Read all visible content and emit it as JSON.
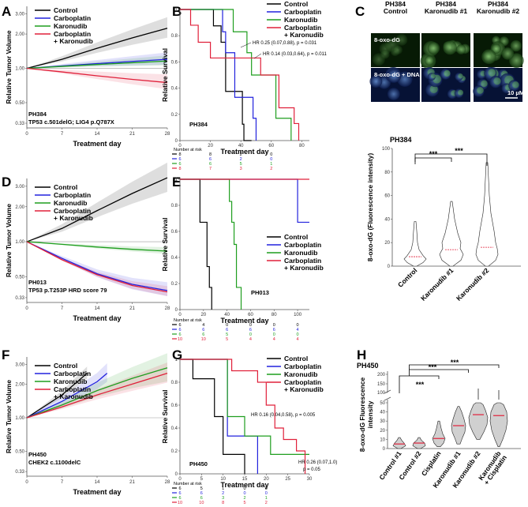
{
  "panel_labels": [
    "A",
    "B",
    "C",
    "D",
    "E",
    "F",
    "G",
    "H"
  ],
  "colors": {
    "control": "#000000",
    "carboplatin": "#2222dd",
    "karonudib": "#1f9e1f",
    "combo": "#e0203a",
    "median": "#ff0000"
  },
  "chart_data": [
    {
      "id": "A",
      "type": "line",
      "xlabel": "Treatment day",
      "ylabel": "Relative Tumor Volume",
      "xticks": [
        0,
        7,
        14,
        21,
        28
      ],
      "yticks": [
        "0.33",
        "0.50",
        "1.00",
        "2.00",
        "3.00"
      ],
      "legend": [
        "Control",
        "Carboplatin",
        "Karonudib",
        "Carboplatin\n+ Karonudib"
      ],
      "series": [
        {
          "name": "Control",
          "color": "#000000",
          "x": [
            0,
            7,
            14,
            21,
            28
          ],
          "y": [
            1,
            1.2,
            1.5,
            1.85,
            2.25
          ]
        },
        {
          "name": "Carboplatin",
          "color": "#2222dd",
          "x": [
            0,
            7,
            14,
            21,
            28
          ],
          "y": [
            1,
            1.05,
            1.1,
            1.15,
            1.2
          ]
        },
        {
          "name": "Karonudib",
          "color": "#1f9e1f",
          "x": [
            0,
            7,
            14,
            21,
            28
          ],
          "y": [
            1,
            1.04,
            1.08,
            1.12,
            1.16
          ]
        },
        {
          "name": "Carboplatin + Karonudib",
          "color": "#e0203a",
          "x": [
            0,
            7,
            14,
            21,
            28
          ],
          "y": [
            1,
            0.93,
            0.86,
            0.8,
            0.75
          ]
        }
      ],
      "annotation": [
        "PH384",
        "TP53 c.501delG; LIG4 p.Q787X"
      ]
    },
    {
      "id": "B",
      "type": "line",
      "subtype": "survival",
      "xlabel": "Treatment day",
      "ylabel": "Relative Survival",
      "xticks": [
        0,
        20,
        40,
        60,
        80
      ],
      "yticks": [
        "0",
        "0.2",
        "0.4",
        "0.6",
        "0.8",
        "1"
      ],
      "legend": [
        "Control",
        "Carboplatin",
        "Karonudib",
        "Carboplatin\n+ Karonudib"
      ],
      "model": "PH384",
      "hr": [
        "HR 0.25 (0.07,0.88), p = 0.031",
        "HR 0.14 (0.03,0.64), p = 0.011"
      ],
      "risk_title": "Number at risk",
      "risk": [
        [
          "8",
          "8",
          "2",
          "0"
        ],
        [
          "6",
          "6",
          "2",
          "0"
        ],
        [
          "6",
          "6",
          "5",
          "1"
        ],
        [
          "8",
          "7",
          "3",
          "2"
        ]
      ],
      "series": [
        {
          "name": "Control",
          "color": "#000000",
          "x": [
            0,
            20,
            22,
            27,
            30,
            38,
            41,
            42,
            47
          ],
          "y": [
            1,
            1,
            0.875,
            0.75,
            0.375,
            0.375,
            0.125,
            0,
            0
          ]
        },
        {
          "name": "Carboplatin",
          "color": "#2222dd",
          "x": [
            0,
            25,
            28,
            30,
            36,
            45,
            48,
            50
          ],
          "y": [
            1,
            1,
            0.83,
            0.67,
            0.33,
            0.33,
            0.17,
            0
          ]
        },
        {
          "name": "Karonudib",
          "color": "#1f9e1f",
          "x": [
            0,
            33,
            35,
            37,
            44,
            47,
            62,
            63,
            72,
            73
          ],
          "y": [
            1,
            1,
            0.83,
            0.83,
            0.67,
            0.5,
            0.5,
            0.17,
            0.17,
            0
          ]
        },
        {
          "name": "Carboplatin + Karonudib",
          "color": "#e0203a",
          "x": [
            0,
            7,
            10,
            12,
            18,
            20,
            50,
            53,
            65,
            72,
            75,
            78
          ],
          "y": [
            1,
            0.88,
            0.88,
            0.75,
            0.75,
            0.63,
            0.63,
            0.5,
            0.25,
            0.25,
            0.13,
            0
          ]
        }
      ]
    },
    {
      "id": "C",
      "type": "heatmap",
      "subtype": "microscopy",
      "columns": [
        "PH384\nControl",
        "PH384\nKaronudib #1",
        "PH384\nKaronudib #2"
      ],
      "rows": [
        "8-oxo-dG",
        "8-oxo-dG + DNA"
      ],
      "scale_bar": "10 µM"
    },
    {
      "id": "C2",
      "type": "violin",
      "title": "PH384",
      "ylabel": "8-oxo-dG (Fluorescence intensity)",
      "categories": [
        "Control",
        "Karonudib #1",
        "Karonudib #2"
      ],
      "yticks": [
        "0",
        "20",
        "40",
        "60",
        "80",
        "100"
      ],
      "ylim": [
        0,
        100
      ],
      "medians": [
        8,
        14,
        16
      ],
      "sig": [
        "***",
        "***"
      ]
    },
    {
      "id": "D",
      "type": "line",
      "xlabel": "Treatment day",
      "ylabel": "Relative Tumor Volume",
      "xticks": [
        0,
        7,
        14,
        21,
        28
      ],
      "yticks": [
        "0.33",
        "0.50",
        "1.00",
        "2.00",
        "3.00"
      ],
      "legend": [
        "Control",
        "Carboplatin",
        "Karonudib",
        "Carboplatin\n+ Karonudib"
      ],
      "annotation": [
        "PH013",
        "TP53 p.T253P  HRD score 79"
      ],
      "series": [
        {
          "name": "Control",
          "color": "#000000",
          "x": [
            0,
            7,
            14,
            21,
            28
          ],
          "y": [
            1,
            1.3,
            1.85,
            2.6,
            3.55
          ]
        },
        {
          "name": "Carboplatin",
          "color": "#2222dd",
          "x": [
            0,
            7,
            14,
            21,
            28
          ],
          "y": [
            1,
            0.72,
            0.53,
            0.43,
            0.38
          ]
        },
        {
          "name": "Karonudib",
          "color": "#1f9e1f",
          "x": [
            0,
            7,
            14,
            21,
            28
          ],
          "y": [
            1,
            0.95,
            0.9,
            0.86,
            0.83
          ]
        },
        {
          "name": "Carboplatin + Karonudib",
          "color": "#e0203a",
          "x": [
            0,
            7,
            14,
            21,
            28
          ],
          "y": [
            1,
            0.7,
            0.52,
            0.42,
            0.37
          ]
        }
      ]
    },
    {
      "id": "E",
      "type": "line",
      "subtype": "survival",
      "xlabel": "Treatment day",
      "ylabel": "Relative Survival",
      "xticks": [
        0,
        20,
        40,
        60,
        80,
        100
      ],
      "yticks": [
        "0",
        "0.2",
        "0.4",
        "0.6",
        "0.8",
        "1"
      ],
      "legend": [
        "Control",
        "Carboplatin",
        "Karonudib",
        "Carboplatin\n+ Karonudib"
      ],
      "model": "PH013",
      "risk_title": "Number at risk",
      "risk": [
        [
          "6",
          "4",
          "0",
          "0",
          "0",
          "0"
        ],
        [
          "6",
          "6",
          "6",
          "6",
          "6",
          "4"
        ],
        [
          "6",
          "6",
          "5",
          "0",
          "0",
          "0"
        ],
        [
          "10",
          "10",
          "5",
          "4",
          "4",
          "4"
        ]
      ],
      "series": [
        {
          "name": "Control",
          "color": "#000000",
          "x": [
            0,
            14,
            17,
            20,
            23,
            25,
            27
          ],
          "y": [
            1,
            1,
            0.67,
            0.67,
            0.33,
            0.17,
            0
          ]
        },
        {
          "name": "Carboplatin",
          "color": "#2222dd",
          "x": [
            0,
            98,
            100,
            110
          ],
          "y": [
            1,
            1,
            0.67,
            0.67
          ]
        },
        {
          "name": "Karonudib",
          "color": "#1f9e1f",
          "x": [
            0,
            40,
            42,
            44,
            46,
            48,
            52
          ],
          "y": [
            1,
            1,
            0.83,
            0.67,
            0.5,
            0.17,
            0
          ]
        },
        {
          "name": "Carboplatin + Karonudib",
          "color": "#e0203a",
          "x": [
            0,
            110
          ],
          "y": [
            1,
            1
          ]
        }
      ]
    },
    {
      "id": "F",
      "type": "line",
      "xlabel": "Treatment day",
      "ylabel": "Relative Tumor Volume",
      "xticks": [
        0,
        7,
        14,
        21,
        28
      ],
      "yticks": [
        "0.33",
        "0.50",
        "1.00",
        "2.00",
        "3.00"
      ],
      "legend": [
        "Control",
        "Carboplatin",
        "Karonudib",
        "Carboplatin\n+ Karonudib"
      ],
      "annotation": [
        "PH450",
        "CHEK2 c.1100delC"
      ],
      "series": [
        {
          "name": "Control",
          "color": "#000000",
          "x": [
            0,
            7,
            12
          ],
          "y": [
            1,
            1.6,
            2.5
          ]
        },
        {
          "name": "Carboplatin",
          "color": "#2222dd",
          "x": [
            0,
            7,
            14,
            16
          ],
          "y": [
            1,
            1.4,
            2.1,
            2.5
          ]
        },
        {
          "name": "Karonudib",
          "color": "#1f9e1f",
          "x": [
            0,
            7,
            14,
            21,
            28
          ],
          "y": [
            1,
            1.3,
            1.75,
            2.25,
            2.8
          ]
        },
        {
          "name": "Carboplatin + Karonudib",
          "color": "#e0203a",
          "x": [
            0,
            7,
            14,
            21,
            28
          ],
          "y": [
            1,
            1.25,
            1.6,
            2.0,
            2.5
          ]
        }
      ]
    },
    {
      "id": "G",
      "type": "line",
      "subtype": "survival",
      "xlabel": "Treatment day",
      "ylabel": "Relative Survival",
      "xticks": [
        0,
        5,
        10,
        15,
        20,
        25,
        30
      ],
      "yticks": [
        "0",
        "0.2",
        "0.4",
        "0.6",
        "0.8",
        "1"
      ],
      "legend": [
        "Control",
        "Carboplatin",
        "Karonudib",
        "Carboplatin\n+ Karonudib"
      ],
      "model": "PH450",
      "hr": [
        "HR 0.16 (0.04,0.58), p = 0.005",
        "HR 0.26 (0.07,1.0)",
        "p = 0.05"
      ],
      "risk_title": "Number at risk",
      "risk": [
        [
          "6",
          "5",
          "1",
          "0",
          "0"
        ],
        [
          "6",
          "6",
          "2",
          "0",
          "0"
        ],
        [
          "6",
          "6",
          "3",
          "2",
          "1"
        ],
        [
          "10",
          "10",
          "8",
          "5",
          "2"
        ]
      ],
      "series": [
        {
          "name": "Control",
          "color": "#000000",
          "x": [
            0,
            3,
            6,
            8,
            10,
            14,
            15
          ],
          "y": [
            1,
            0.83,
            0.83,
            0.5,
            0.17,
            0.17,
            0
          ]
        },
        {
          "name": "Carboplatin",
          "color": "#2222dd",
          "x": [
            0,
            10,
            11,
            17,
            18
          ],
          "y": [
            1,
            1,
            0.33,
            0.33,
            0
          ]
        },
        {
          "name": "Karonudib",
          "color": "#1f9e1f",
          "x": [
            0,
            10,
            11,
            14,
            15,
            20,
            21,
            30
          ],
          "y": [
            1,
            1,
            0.5,
            0.5,
            0.33,
            0.33,
            0.17,
            0.17
          ]
        },
        {
          "name": "Carboplatin + Karonudib",
          "color": "#e0203a",
          "x": [
            0,
            10,
            12,
            15,
            18,
            20,
            22,
            24,
            27,
            29
          ],
          "y": [
            1,
            1,
            0.9,
            0.9,
            0.8,
            0.6,
            0.4,
            0.3,
            0.2,
            0
          ]
        }
      ]
    },
    {
      "id": "H",
      "type": "violin",
      "title": "PH450",
      "ylabel": "8-oxo-dG Fluorescence\nintensity",
      "categories": [
        "Control #1",
        "Control #2",
        "Cisplatin",
        "Karonudib #1",
        "Karonudib #2",
        "Karonudib\n+ Cisplatin"
      ],
      "yticks": [
        "0",
        "10",
        "20",
        "30",
        "40",
        "50",
        "100",
        "150",
        "200"
      ],
      "medians": [
        5,
        6,
        11,
        25,
        37,
        36
      ],
      "sig": [
        "***",
        "***",
        "***"
      ]
    }
  ]
}
